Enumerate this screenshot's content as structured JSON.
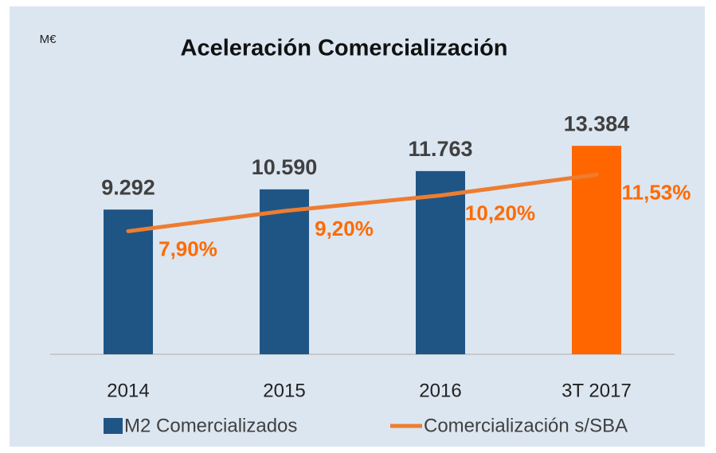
{
  "chart_data": {
    "type": "combo",
    "title": "Aceleración Comercialización",
    "unit_label": "M€",
    "categories": [
      "2014",
      "2015",
      "2016",
      "3T 2017"
    ],
    "series": [
      {
        "name": "M2 Comercializados",
        "type": "bar",
        "color": "#1f5585",
        "colors": [
          "#1f5585",
          "#1f5585",
          "#1f5585",
          "#ff6600"
        ],
        "values": [
          9292,
          10590,
          11763,
          13384
        ],
        "value_labels": [
          "9.292",
          "10.590",
          "11.763",
          "13.384"
        ]
      },
      {
        "name": "Comercialización s/SBA",
        "type": "line",
        "axis": "y2",
        "color": "#ed7d31",
        "label_color": "#ff6a00",
        "values": [
          7.9,
          9.2,
          10.2,
          11.53
        ],
        "value_labels": [
          "7,90%",
          "9,20%",
          "10,20%",
          "11,53%"
        ]
      }
    ],
    "ylim": [
      0,
      16000
    ],
    "y2lim": [
      0,
      16
    ]
  }
}
